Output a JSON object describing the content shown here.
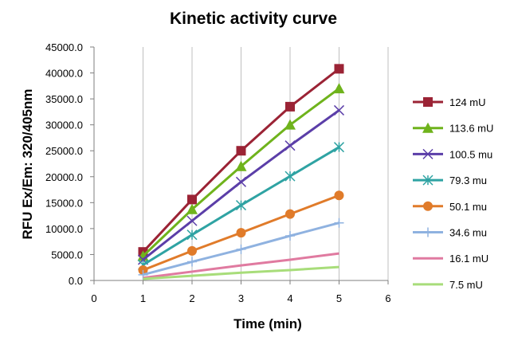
{
  "chart_data": {
    "type": "line",
    "title": "Kinetic activity curve",
    "xlabel": "Time (min)",
    "ylabel": "RFU Ex/Em: 320/405nm",
    "xlim": [
      0,
      6
    ],
    "ylim": [
      0,
      45000
    ],
    "x_ticks": [
      "0",
      "1",
      "2",
      "3",
      "4",
      "5",
      "6"
    ],
    "y_ticks": [
      "0.0",
      "5000.0",
      "10000.0",
      "15000.0",
      "20000.0",
      "25000.0",
      "30000.0",
      "35000.0",
      "40000.0",
      "45000.0"
    ],
    "grid": "vertical",
    "legend_position": "right",
    "x": [
      1,
      2,
      3,
      4,
      5
    ],
    "series": [
      {
        "name": "124 mU",
        "color": "#9b2335",
        "marker": "square",
        "values": [
          5500,
          15600,
          25000,
          33500,
          40800
        ]
      },
      {
        "name": "113.6 mU",
        "color": "#6fb31c",
        "marker": "triangle",
        "values": [
          4700,
          13700,
          22000,
          30000,
          37000
        ]
      },
      {
        "name": "100.5 mu",
        "color": "#5b3ea8",
        "marker": "x",
        "values": [
          4000,
          11500,
          19000,
          26000,
          32800
        ]
      },
      {
        "name": "79.3 mu",
        "color": "#2fa3a3",
        "marker": "star",
        "values": [
          3000,
          8800,
          14500,
          20100,
          25700
        ]
      },
      {
        "name": "50.1 mu",
        "color": "#e07b2a",
        "marker": "circle",
        "values": [
          2000,
          5700,
          9200,
          12800,
          16400
        ]
      },
      {
        "name": "34.6 mu",
        "color": "#8fb2e0",
        "marker": "plus",
        "values": [
          1100,
          3600,
          6000,
          8600,
          11100
        ]
      },
      {
        "name": "16.1 mU",
        "color": "#e07aa0",
        "marker": "none",
        "values": [
          500,
          1700,
          2900,
          4000,
          5200
        ]
      },
      {
        "name": "7.5 mU",
        "color": "#a8dd7a",
        "marker": "none",
        "values": [
          300,
          900,
          1500,
          2000,
          2600
        ]
      }
    ]
  }
}
